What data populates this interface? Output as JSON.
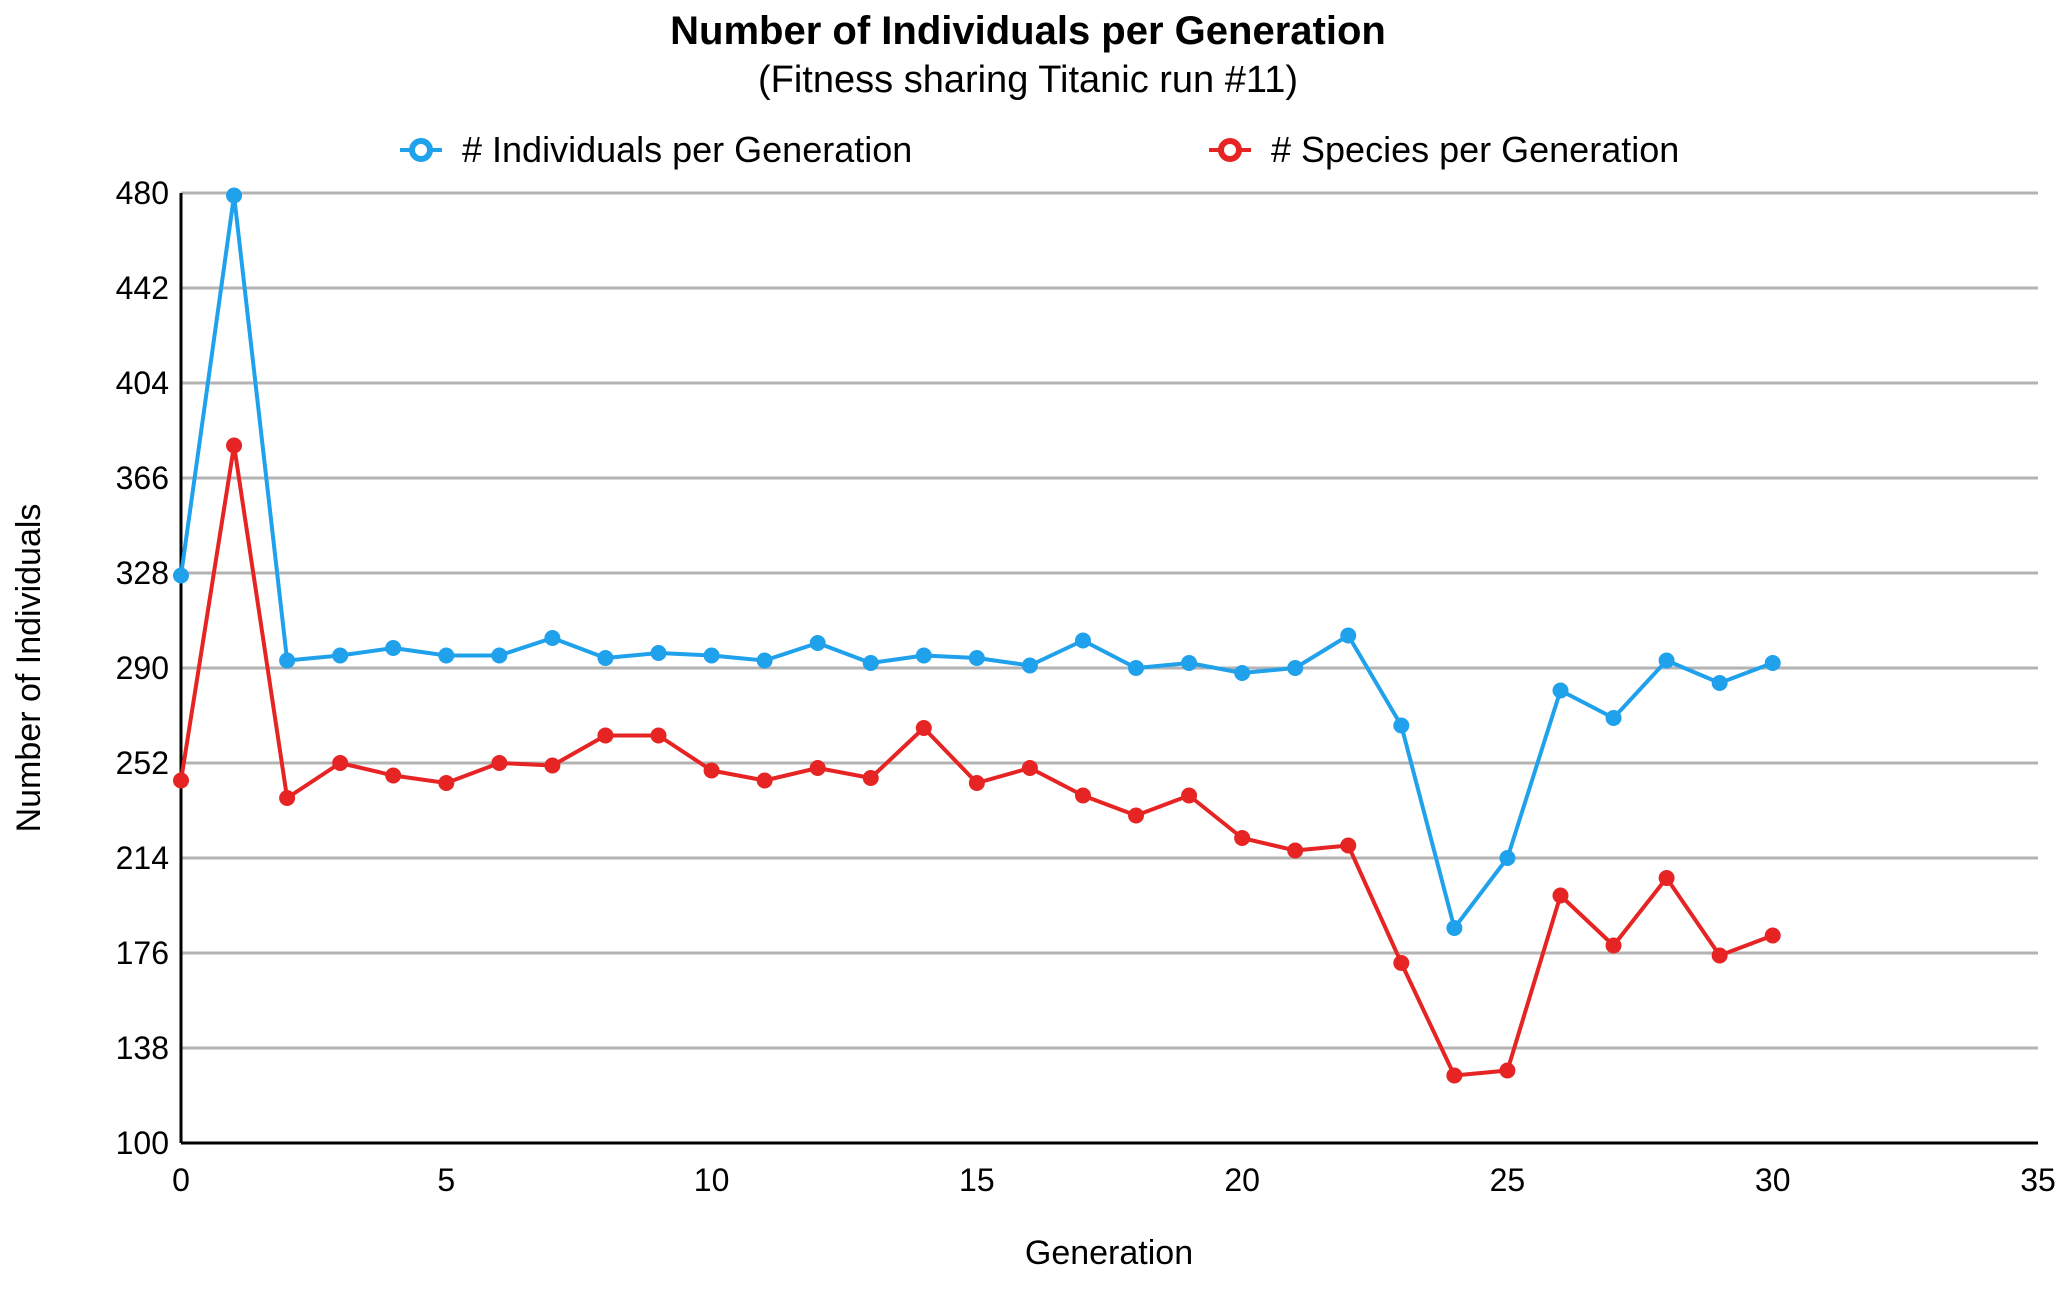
{
  "chart_data": {
    "type": "line",
    "title": "Number of Individuals per Generation",
    "subtitle": "(Fitness sharing Titanic run #11)",
    "xlabel": "Generation",
    "ylabel": "Number of Individuals",
    "xlim": [
      0,
      35
    ],
    "ylim": [
      100,
      480
    ],
    "x_ticks": [
      0,
      5,
      10,
      15,
      20,
      25,
      30,
      35
    ],
    "y_ticks": [
      100,
      138,
      176,
      214,
      252,
      290,
      328,
      366,
      404,
      442,
      480
    ],
    "grid": true,
    "legend_position": "top",
    "x": [
      0,
      1,
      2,
      3,
      4,
      5,
      6,
      7,
      8,
      9,
      10,
      11,
      12,
      13,
      14,
      15,
      16,
      17,
      18,
      19,
      20,
      21,
      22,
      23,
      24,
      25,
      26,
      27,
      28,
      29,
      30
    ],
    "series": [
      {
        "name": "# Individuals per Generation",
        "color": "#1fa1eb",
        "values": [
          327,
          479,
          293,
          295,
          298,
          295,
          295,
          302,
          294,
          296,
          295,
          293,
          300,
          292,
          295,
          294,
          291,
          301,
          290,
          292,
          288,
          290,
          303,
          267,
          186,
          214,
          281,
          270,
          293,
          284,
          292
        ]
      },
      {
        "name": "# Species per Generation",
        "color": "#e52423",
        "values": [
          245,
          379,
          238,
          252,
          247,
          244,
          252,
          251,
          263,
          263,
          249,
          245,
          250,
          246,
          266,
          244,
          250,
          239,
          231,
          239,
          222,
          217,
          219,
          172,
          127,
          129,
          199,
          179,
          206,
          175,
          183
        ]
      }
    ]
  }
}
